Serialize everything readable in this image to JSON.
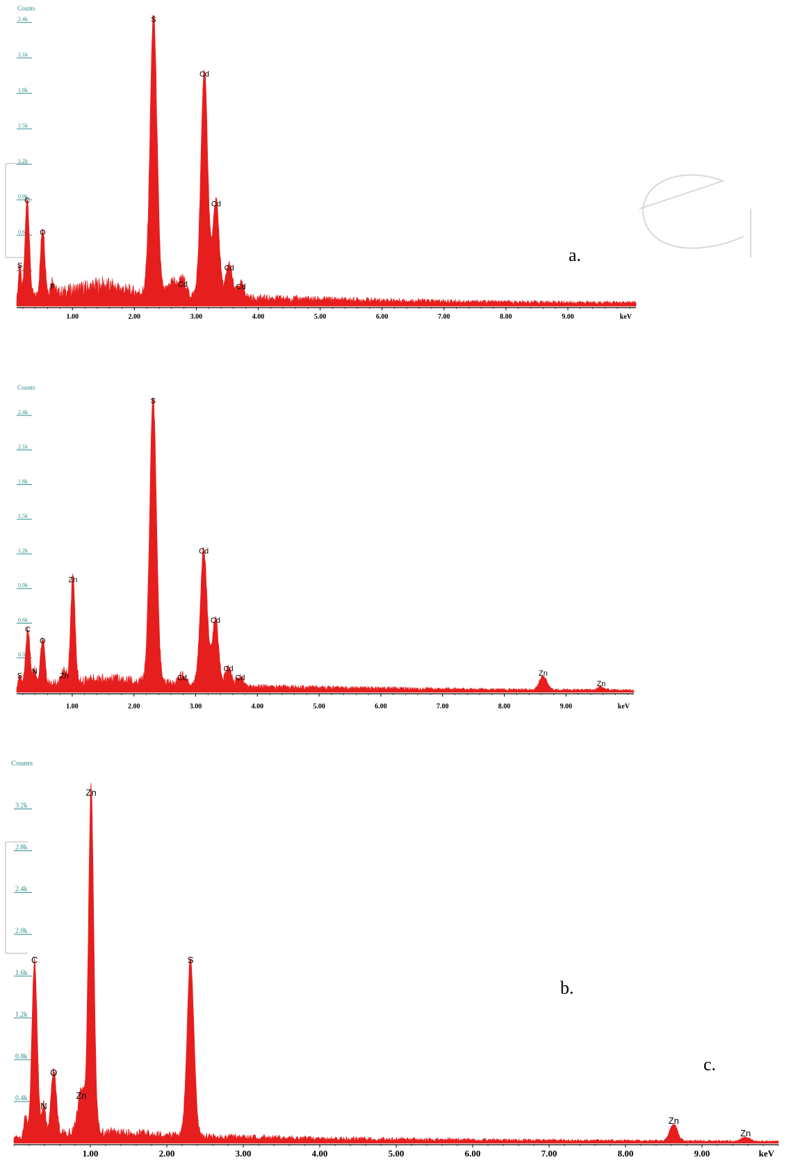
{
  "chart_data": [
    {
      "type": "area",
      "panel_label": "a.",
      "ylabel": "Counts",
      "xunit": "keV",
      "xlim": [
        0.1,
        10.1
      ],
      "ylim": [
        0,
        2.46
      ],
      "x_ticks": [
        "1.00",
        "2.00",
        "3.00",
        "4.00",
        "5.00",
        "6.00",
        "7.00",
        "8.00",
        "9.00"
      ],
      "x_tick_values": [
        1,
        2,
        3,
        4,
        5,
        6,
        7,
        8,
        9
      ],
      "y_ticks": [
        "0.3k",
        "0.6k",
        "0.9k",
        "1.2k",
        "1.5k",
        "1.8k",
        "2.1k",
        "2.4k"
      ],
      "y_tick_values": [
        0.3,
        0.6,
        0.9,
        1.2,
        1.5,
        1.8,
        2.1,
        2.4
      ],
      "color": "#e61e1e",
      "series": [
        {
          "peaks": [
            {
              "x": 0.15,
              "y": 0.3,
              "w": 0.02
            },
            {
              "x": 0.27,
              "y": 0.85,
              "w": 0.035
            },
            {
              "x": 0.52,
              "y": 0.58,
              "w": 0.035
            },
            {
              "x": 0.68,
              "y": 0.12,
              "w": 0.03
            },
            {
              "x": 2.31,
              "y": 2.38,
              "w": 0.055
            },
            {
              "x": 2.62,
              "y": 0.12,
              "w": 0.06
            },
            {
              "x": 2.78,
              "y": 0.14,
              "w": 0.05
            },
            {
              "x": 3.13,
              "y": 1.92,
              "w": 0.055
            },
            {
              "x": 3.32,
              "y": 0.82,
              "w": 0.05
            },
            {
              "x": 3.53,
              "y": 0.28,
              "w": 0.05
            },
            {
              "x": 3.72,
              "y": 0.12,
              "w": 0.05
            }
          ],
          "background": [
            [
              0.1,
              0.06
            ],
            [
              1.5,
              0.18
            ],
            [
              2.0,
              0.12
            ],
            [
              3.0,
              0.09
            ],
            [
              4.0,
              0.07
            ],
            [
              6.0,
              0.05
            ],
            [
              8.0,
              0.035
            ],
            [
              10.1,
              0.03
            ]
          ]
        }
      ],
      "annotations": [
        {
          "text": "S",
          "x": 0.15,
          "y": 0.3
        },
        {
          "text": "C",
          "x": 0.27,
          "y": 0.85
        },
        {
          "text": "O",
          "x": 0.52,
          "y": 0.58
        },
        {
          "text": "F",
          "x": 0.68,
          "y": 0.12
        },
        {
          "text": "S",
          "x": 2.31,
          "y": 2.38
        },
        {
          "text": "Cd",
          "x": 2.78,
          "y": 0.14
        },
        {
          "text": "Cd",
          "x": 3.13,
          "y": 1.92
        },
        {
          "text": "Cd",
          "x": 3.32,
          "y": 0.82
        },
        {
          "text": "Cd",
          "x": 3.53,
          "y": 0.28
        },
        {
          "text": "Cd",
          "x": 3.72,
          "y": 0.12
        }
      ]
    },
    {
      "type": "area",
      "panel_label": "b.",
      "ylabel": "Counts",
      "xunit": "keV",
      "xlim": [
        0.1,
        10.1
      ],
      "ylim": [
        0,
        2.55
      ],
      "x_ticks": [
        "1.00",
        "2.00",
        "3.00",
        "4.00",
        "5.00",
        "6.00",
        "7.00",
        "8.00",
        "9.00"
      ],
      "x_tick_values": [
        1,
        2,
        3,
        4,
        5,
        6,
        7,
        8,
        9
      ],
      "y_ticks": [
        "0.3k",
        "0.6k",
        "0.9k",
        "1.2k",
        "1.5k",
        "1.8k",
        "2.1k",
        "2.4k"
      ],
      "y_tick_values": [
        0.3,
        0.6,
        0.9,
        1.2,
        1.5,
        1.8,
        2.1,
        2.4
      ],
      "color": "#e61e1e",
      "series": [
        {
          "peaks": [
            {
              "x": 0.15,
              "y": 0.1,
              "w": 0.02
            },
            {
              "x": 0.28,
              "y": 0.5,
              "w": 0.035
            },
            {
              "x": 0.39,
              "y": 0.14,
              "w": 0.025
            },
            {
              "x": 0.52,
              "y": 0.4,
              "w": 0.035
            },
            {
              "x": 0.87,
              "y": 0.1,
              "w": 0.04
            },
            {
              "x": 1.01,
              "y": 0.93,
              "w": 0.035
            },
            {
              "x": 2.31,
              "y": 2.48,
              "w": 0.055
            },
            {
              "x": 2.78,
              "y": 0.08,
              "w": 0.05
            },
            {
              "x": 3.13,
              "y": 1.18,
              "w": 0.055
            },
            {
              "x": 3.32,
              "y": 0.58,
              "w": 0.05
            },
            {
              "x": 3.53,
              "y": 0.16,
              "w": 0.05
            },
            {
              "x": 3.72,
              "y": 0.08,
              "w": 0.05
            },
            {
              "x": 8.63,
              "y": 0.12,
              "w": 0.06
            },
            {
              "x": 9.57,
              "y": 0.03,
              "w": 0.05
            }
          ],
          "background": [
            [
              0.1,
              0.05
            ],
            [
              1.5,
              0.12
            ],
            [
              2.0,
              0.1
            ],
            [
              3.0,
              0.07
            ],
            [
              4.0,
              0.05
            ],
            [
              6.0,
              0.035
            ],
            [
              8.0,
              0.025
            ],
            [
              10.1,
              0.02
            ]
          ]
        }
      ],
      "annotations": [
        {
          "text": "S",
          "x": 0.15,
          "y": 0.1
        },
        {
          "text": "C",
          "x": 0.28,
          "y": 0.5
        },
        {
          "text": "N",
          "x": 0.39,
          "y": 0.14
        },
        {
          "text": "O",
          "x": 0.52,
          "y": 0.4
        },
        {
          "text": "Zn",
          "x": 0.87,
          "y": 0.1
        },
        {
          "text": "Zn",
          "x": 1.01,
          "y": 0.93
        },
        {
          "text": "S",
          "x": 2.31,
          "y": 2.48
        },
        {
          "text": "Cd",
          "x": 2.78,
          "y": 0.08
        },
        {
          "text": "Cd",
          "x": 3.13,
          "y": 1.18
        },
        {
          "text": "Cd",
          "x": 3.32,
          "y": 0.58
        },
        {
          "text": "Cd",
          "x": 3.53,
          "y": 0.16
        },
        {
          "text": "Cd",
          "x": 3.72,
          "y": 0.08
        },
        {
          "text": "Zn",
          "x": 8.63,
          "y": 0.12
        },
        {
          "text": "Zn",
          "x": 9.57,
          "y": 0.03
        }
      ]
    },
    {
      "type": "area",
      "panel_label": "c.",
      "ylabel": "Counts",
      "xunit": "keV",
      "xlim": [
        0.0,
        10.0
      ],
      "ylim": [
        0,
        3.45
      ],
      "x_ticks": [
        "1.00",
        "2.00",
        "3.00",
        "4.00",
        "5.00",
        "6.00",
        "7.00",
        "8.00",
        "9.00"
      ],
      "x_tick_values": [
        1,
        2,
        3,
        4,
        5,
        6,
        7,
        8,
        9
      ],
      "y_ticks": [
        "0.4k",
        "0.8k",
        "1.2k",
        "1.6k",
        "2.0k",
        "2.4k",
        "2.8k",
        "3.2k"
      ],
      "y_tick_values": [
        0.4,
        0.8,
        1.2,
        1.6,
        2.0,
        2.4,
        2.8,
        3.2
      ],
      "color": "#e61e1e",
      "series": [
        {
          "peaks": [
            {
              "x": 0.15,
              "y": 0.2,
              "w": 0.02
            },
            {
              "x": 0.27,
              "y": 1.7,
              "w": 0.035
            },
            {
              "x": 0.39,
              "y": 0.3,
              "w": 0.025
            },
            {
              "x": 0.52,
              "y": 0.62,
              "w": 0.035
            },
            {
              "x": 0.88,
              "y": 0.4,
              "w": 0.045
            },
            {
              "x": 1.01,
              "y": 3.3,
              "w": 0.035
            },
            {
              "x": 2.31,
              "y": 1.7,
              "w": 0.045
            },
            {
              "x": 8.63,
              "y": 0.16,
              "w": 0.05
            },
            {
              "x": 9.57,
              "y": 0.04,
              "w": 0.05
            }
          ],
          "background": [
            [
              0.0,
              0.05
            ],
            [
              1.0,
              0.12
            ],
            [
              2.0,
              0.08
            ],
            [
              3.0,
              0.06
            ],
            [
              5.0,
              0.04
            ],
            [
              8.0,
              0.025
            ],
            [
              10.0,
              0.02
            ]
          ]
        }
      ],
      "annotations": [
        {
          "text": "C",
          "x": 0.27,
          "y": 1.7
        },
        {
          "text": "N",
          "x": 0.39,
          "y": 0.3
        },
        {
          "text": "O",
          "x": 0.52,
          "y": 0.62
        },
        {
          "text": "Zn",
          "x": 0.88,
          "y": 0.4
        },
        {
          "text": "Zn",
          "x": 1.01,
          "y": 3.3
        },
        {
          "text": "S",
          "x": 2.31,
          "y": 1.7
        },
        {
          "text": "Zn",
          "x": 8.63,
          "y": 0.16
        },
        {
          "text": "Zn",
          "x": 9.57,
          "y": 0.04
        }
      ]
    }
  ]
}
